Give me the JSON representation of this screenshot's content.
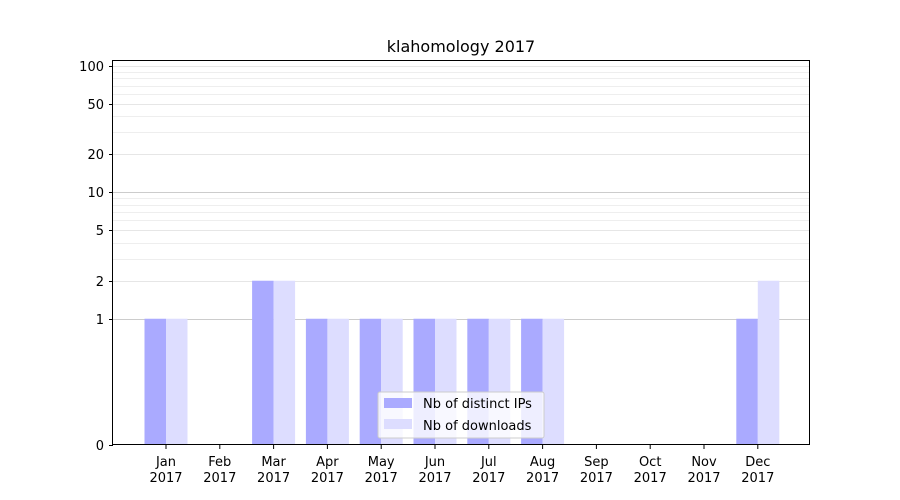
{
  "chart_data": {
    "type": "bar",
    "title": "klahomology 2017",
    "xlabel": "",
    "ylabel": "",
    "yscale": "symlog",
    "ylim": [
      0,
      110
    ],
    "y_ticks": [
      0,
      1,
      2,
      5,
      10,
      20,
      50,
      100
    ],
    "grid": "horizontal",
    "legend_position": "lower-center",
    "categories": [
      "Jan 2017",
      "Feb 2017",
      "Mar 2017",
      "Apr 2017",
      "May 2017",
      "Jun 2017",
      "Jul 2017",
      "Aug 2017",
      "Sep 2017",
      "Oct 2017",
      "Nov 2017",
      "Dec 2017"
    ],
    "category_lines": [
      [
        "Jan",
        "2017"
      ],
      [
        "Feb",
        "2017"
      ],
      [
        "Mar",
        "2017"
      ],
      [
        "Apr",
        "2017"
      ],
      [
        "May",
        "2017"
      ],
      [
        "Jun",
        "2017"
      ],
      [
        "Jul",
        "2017"
      ],
      [
        "Aug",
        "2017"
      ],
      [
        "Sep",
        "2017"
      ],
      [
        "Oct",
        "2017"
      ],
      [
        "Nov",
        "2017"
      ],
      [
        "Dec",
        "2017"
      ]
    ],
    "series": [
      {
        "name": "Nb of distinct IPs",
        "color": "#aaaaff",
        "values": [
          1,
          0,
          2,
          1,
          1,
          1,
          1,
          1,
          0,
          0,
          0,
          1
        ]
      },
      {
        "name": "Nb of downloads",
        "color": "#ddddff",
        "values": [
          1,
          0,
          2,
          1,
          1,
          1,
          1,
          1,
          0,
          0,
          0,
          2
        ]
      }
    ]
  }
}
